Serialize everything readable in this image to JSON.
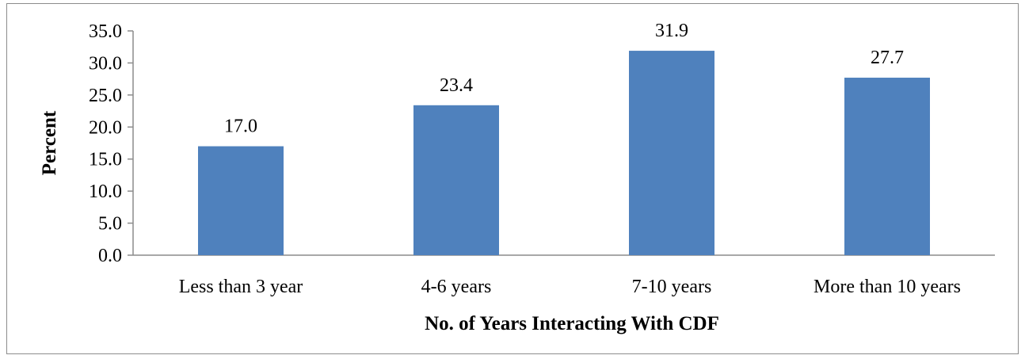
{
  "chart_data": {
    "type": "bar",
    "categories": [
      "Less than 3 year",
      "4-6 years",
      "7-10 years",
      "More than 10 years"
    ],
    "values": [
      17.0,
      23.4,
      31.9,
      27.7
    ],
    "value_labels": [
      "17.0",
      "23.4",
      "31.9",
      "27.7"
    ],
    "xlabel": "No. of Years Interacting With CDF",
    "ylabel": "Percent",
    "ylim": [
      0,
      35
    ],
    "yticks": [
      0,
      5,
      10,
      15,
      20,
      25,
      30,
      35
    ],
    "ytick_labels": [
      "0.0",
      "5.0",
      "10.0",
      "15.0",
      "20.0",
      "25.0",
      "30.0",
      "35.0"
    ],
    "grid": false,
    "legend": "none",
    "bar_color": "#4f81bd",
    "axis_color": "#8c8c8c"
  }
}
